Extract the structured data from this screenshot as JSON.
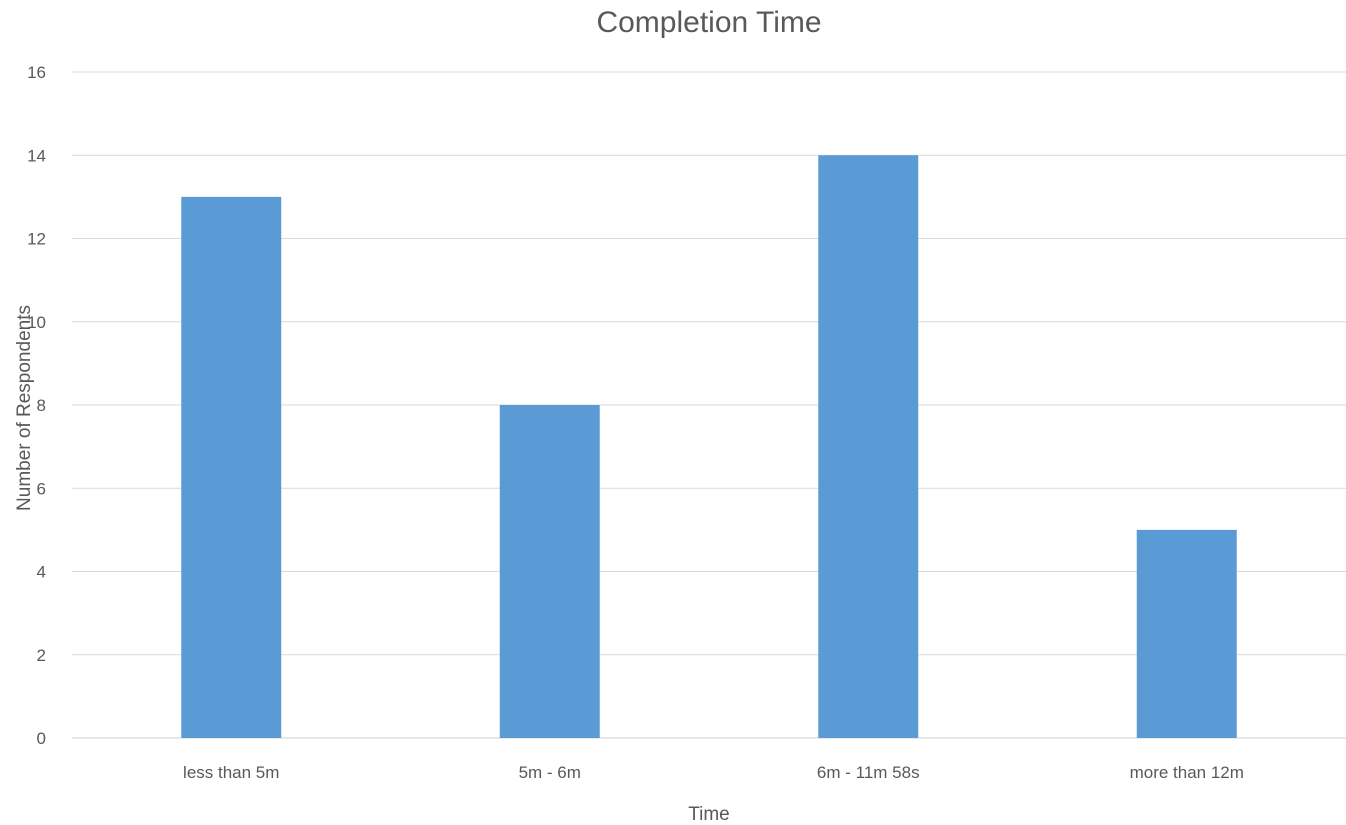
{
  "chart_data": {
    "type": "bar",
    "title": "Completion Time",
    "xlabel": "Time",
    "ylabel": "Number of Respondents",
    "categories": [
      "less than 5m",
      "5m - 6m",
      "6m - 11m 58s",
      "more than 12m"
    ],
    "values": [
      13,
      8,
      14,
      5
    ],
    "ylim": [
      0,
      16
    ],
    "yticks": [
      "0",
      "2",
      "4",
      "6",
      "8",
      "10",
      "12",
      "14",
      "16"
    ],
    "grid": true,
    "legend": "none",
    "colors": {
      "bar": "#5b9bd5",
      "grid": "#d9d9d9",
      "text": "#595959"
    }
  }
}
